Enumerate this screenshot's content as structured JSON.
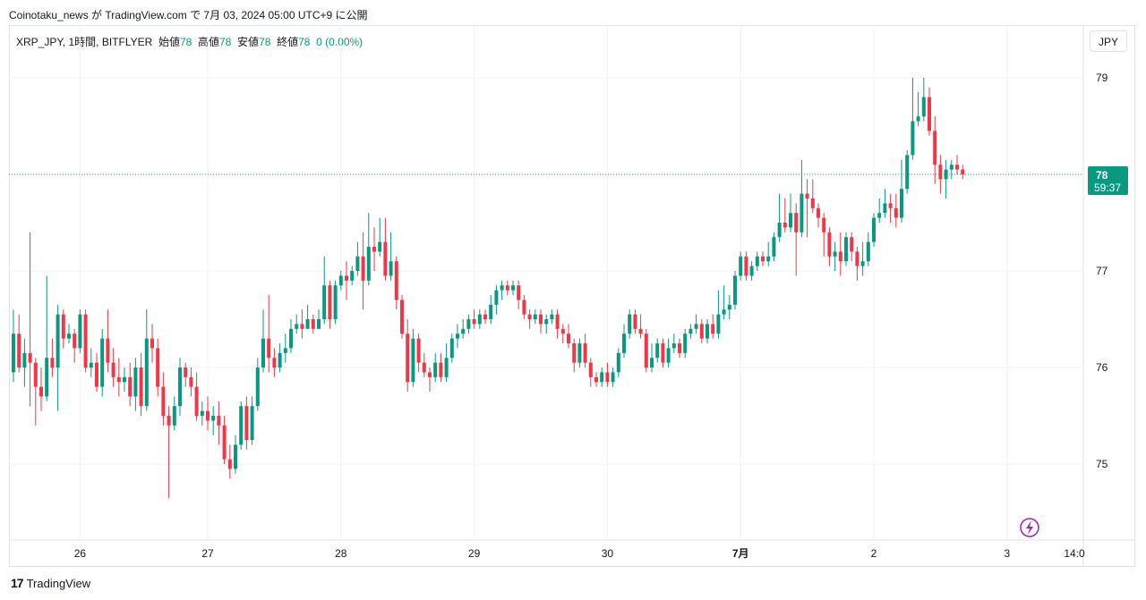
{
  "header": {
    "publish_text": "Coinotaku_news が TradingView.com で 7月 03, 2024 05:00 UTC+9 に公開"
  },
  "legend": {
    "symbol": "XRP_JPY, 1時間, BITFLYER",
    "open_label": "始値",
    "open_value": "78",
    "high_label": "高値",
    "high_value": "78",
    "low_label": "安値",
    "low_value": "78",
    "close_label": "終値",
    "close_value": "78",
    "change": "0 (0.00%)"
  },
  "currency_button": "JPY",
  "price_tag": {
    "price": "78",
    "countdown": "59:37"
  },
  "footer": {
    "brand": "TradingView",
    "logo_text": "17"
  },
  "colors": {
    "up": "#089981",
    "down": "#f23645",
    "grid": "#f0f3fa",
    "tag": "#089981",
    "bolt": "#9c27b0"
  },
  "icons": {
    "bolt": "lightning-icon",
    "logo": "tradingview-logo-icon"
  },
  "chart_data": {
    "type": "candlestick",
    "title": "",
    "xlabel": "",
    "ylabel": "",
    "ylim": [
      74.2,
      79.3
    ],
    "y_ticks": [
      "79",
      "77",
      "76",
      "75"
    ],
    "x_tick_labels": [
      "26",
      "27",
      "28",
      "29",
      "30",
      "7月",
      "2",
      "3",
      "14:0"
    ],
    "grid": true,
    "last_price": 78.0,
    "candles": [
      [
        75.95,
        76.35,
        76.6,
        75.85
      ],
      [
        76.35,
        76.0,
        76.55,
        75.95
      ],
      [
        76.0,
        76.15,
        76.3,
        75.8
      ],
      [
        76.15,
        76.05,
        77.4,
        75.6
      ],
      [
        76.05,
        75.8,
        76.1,
        75.4
      ],
      [
        75.8,
        75.7,
        76.0,
        75.55
      ],
      [
        75.7,
        76.1,
        76.95,
        75.65
      ],
      [
        76.1,
        76.0,
        76.3,
        75.9
      ],
      [
        76.0,
        76.55,
        76.65,
        75.55
      ],
      [
        76.55,
        76.3,
        76.6,
        76.2
      ],
      [
        76.3,
        76.35,
        76.45,
        76.25
      ],
      [
        76.35,
        76.2,
        76.4,
        76.05
      ],
      [
        76.2,
        76.55,
        76.6,
        76.15
      ],
      [
        76.55,
        76.0,
        76.6,
        75.95
      ],
      [
        76.0,
        76.05,
        76.2,
        75.9
      ],
      [
        76.05,
        75.8,
        76.15,
        75.75
      ],
      [
        75.8,
        76.3,
        76.4,
        75.7
      ],
      [
        76.3,
        76.05,
        76.6,
        75.95
      ],
      [
        76.05,
        75.9,
        76.2,
        75.8
      ],
      [
        75.9,
        75.85,
        76.1,
        75.7
      ],
      [
        75.85,
        75.9,
        76.0,
        75.75
      ],
      [
        75.9,
        75.7,
        76.05,
        75.6
      ],
      [
        75.7,
        76.0,
        76.1,
        75.55
      ],
      [
        76.0,
        75.6,
        76.15,
        75.5
      ],
      [
        75.6,
        76.3,
        76.6,
        75.55
      ],
      [
        76.3,
        76.2,
        76.45,
        76.05
      ],
      [
        76.2,
        75.8,
        76.3,
        75.7
      ],
      [
        75.8,
        75.5,
        75.95,
        75.4
      ],
      [
        75.5,
        75.4,
        75.6,
        74.65
      ],
      [
        75.4,
        75.6,
        75.7,
        75.35
      ],
      [
        75.6,
        76.0,
        76.1,
        75.5
      ],
      [
        76.0,
        75.9,
        76.05,
        75.8
      ],
      [
        75.9,
        75.8,
        76.0,
        75.7
      ],
      [
        75.8,
        75.5,
        75.95,
        75.45
      ],
      [
        75.5,
        75.55,
        75.65,
        75.4
      ],
      [
        75.55,
        75.45,
        75.7,
        75.35
      ],
      [
        75.45,
        75.5,
        75.6,
        75.3
      ],
      [
        75.5,
        75.4,
        75.65,
        75.2
      ],
      [
        75.4,
        75.05,
        75.5,
        75.0
      ],
      [
        75.05,
        74.95,
        75.2,
        74.85
      ],
      [
        74.95,
        75.2,
        75.3,
        74.9
      ],
      [
        75.2,
        75.6,
        75.65,
        75.15
      ],
      [
        75.6,
        75.25,
        75.7,
        75.15
      ],
      [
        75.25,
        75.6,
        75.7,
        75.2
      ],
      [
        75.6,
        76.0,
        76.1,
        75.55
      ],
      [
        76.0,
        76.3,
        76.6,
        75.95
      ],
      [
        76.3,
        76.1,
        76.75,
        75.95
      ],
      [
        76.1,
        76.0,
        76.2,
        75.9
      ],
      [
        76.0,
        76.15,
        76.25,
        75.95
      ],
      [
        76.15,
        76.2,
        76.35,
        76.05
      ],
      [
        76.2,
        76.4,
        76.5,
        76.15
      ],
      [
        76.4,
        76.45,
        76.55,
        76.35
      ],
      [
        76.45,
        76.4,
        76.6,
        76.3
      ],
      [
        76.4,
        76.5,
        76.65,
        76.4
      ],
      [
        76.5,
        76.4,
        76.55,
        76.35
      ],
      [
        76.4,
        76.5,
        76.6,
        76.4
      ],
      [
        76.5,
        76.85,
        77.15,
        76.45
      ],
      [
        76.85,
        76.5,
        76.9,
        76.4
      ],
      [
        76.5,
        76.85,
        76.9,
        76.45
      ],
      [
        76.85,
        76.95,
        77.0,
        76.8
      ],
      [
        76.95,
        76.9,
        77.1,
        76.7
      ],
      [
        76.9,
        77.0,
        77.05,
        76.85
      ],
      [
        77.0,
        77.15,
        77.3,
        76.95
      ],
      [
        77.15,
        76.9,
        77.4,
        76.6
      ],
      [
        76.9,
        77.25,
        77.6,
        76.85
      ],
      [
        77.25,
        77.2,
        77.45,
        77.0
      ],
      [
        77.2,
        77.3,
        77.55,
        77.15
      ],
      [
        77.3,
        76.95,
        77.55,
        76.9
      ],
      [
        76.95,
        77.1,
        77.4,
        76.9
      ],
      [
        77.1,
        76.7,
        77.15,
        76.6
      ],
      [
        76.7,
        76.35,
        76.75,
        76.3
      ],
      [
        76.35,
        75.85,
        76.5,
        75.75
      ],
      [
        75.85,
        76.3,
        76.4,
        75.8
      ],
      [
        76.3,
        76.05,
        76.35,
        75.95
      ],
      [
        76.05,
        75.95,
        76.15,
        75.9
      ],
      [
        75.95,
        75.9,
        76.0,
        75.75
      ],
      [
        75.9,
        76.05,
        76.15,
        75.85
      ],
      [
        76.05,
        75.9,
        76.15,
        75.85
      ],
      [
        75.9,
        76.1,
        76.25,
        75.85
      ],
      [
        76.1,
        76.3,
        76.35,
        76.05
      ],
      [
        76.3,
        76.35,
        76.45,
        76.2
      ],
      [
        76.35,
        76.4,
        76.5,
        76.3
      ],
      [
        76.4,
        76.5,
        76.55,
        76.35
      ],
      [
        76.5,
        76.45,
        76.6,
        76.4
      ],
      [
        76.45,
        76.55,
        76.6,
        76.4
      ],
      [
        76.55,
        76.5,
        76.6,
        76.45
      ],
      [
        76.5,
        76.65,
        76.75,
        76.45
      ],
      [
        76.65,
        76.8,
        76.85,
        76.55
      ],
      [
        76.8,
        76.85,
        76.9,
        76.7
      ],
      [
        76.85,
        76.8,
        76.9,
        76.75
      ],
      [
        76.8,
        76.85,
        76.9,
        76.75
      ],
      [
        76.85,
        76.7,
        76.9,
        76.6
      ],
      [
        76.7,
        76.55,
        76.75,
        76.5
      ],
      [
        76.55,
        76.5,
        76.6,
        76.4
      ],
      [
        76.5,
        76.55,
        76.6,
        76.45
      ],
      [
        76.55,
        76.45,
        76.6,
        76.35
      ],
      [
        76.45,
        76.5,
        76.55,
        76.35
      ],
      [
        76.5,
        76.55,
        76.6,
        76.45
      ],
      [
        76.55,
        76.4,
        76.6,
        76.3
      ],
      [
        76.4,
        76.35,
        76.45,
        76.25
      ],
      [
        76.35,
        76.25,
        76.45,
        76.2
      ],
      [
        76.25,
        76.05,
        76.3,
        75.95
      ],
      [
        76.05,
        76.25,
        76.3,
        76.0
      ],
      [
        76.25,
        76.05,
        76.35,
        76.0
      ],
      [
        76.05,
        75.9,
        76.1,
        75.8
      ],
      [
        75.9,
        75.85,
        75.95,
        75.8
      ],
      [
        75.85,
        75.95,
        76.0,
        75.8
      ],
      [
        75.95,
        75.85,
        76.05,
        75.8
      ],
      [
        75.85,
        75.95,
        76.0,
        75.8
      ],
      [
        75.95,
        76.15,
        76.2,
        75.9
      ],
      [
        76.15,
        76.35,
        76.45,
        76.1
      ],
      [
        76.35,
        76.55,
        76.6,
        76.3
      ],
      [
        76.55,
        76.4,
        76.6,
        76.35
      ],
      [
        76.4,
        76.35,
        76.55,
        76.3
      ],
      [
        76.35,
        76.0,
        76.4,
        75.95
      ],
      [
        76.0,
        76.1,
        76.25,
        75.95
      ],
      [
        76.1,
        76.25,
        76.3,
        76.05
      ],
      [
        76.25,
        76.05,
        76.3,
        76.0
      ],
      [
        76.05,
        76.2,
        76.3,
        76.0
      ],
      [
        76.2,
        76.25,
        76.35,
        76.15
      ],
      [
        76.25,
        76.15,
        76.3,
        76.1
      ],
      [
        76.15,
        76.35,
        76.4,
        76.1
      ],
      [
        76.35,
        76.4,
        76.45,
        76.3
      ],
      [
        76.4,
        76.45,
        76.55,
        76.35
      ],
      [
        76.45,
        76.3,
        76.5,
        76.25
      ],
      [
        76.3,
        76.45,
        76.5,
        76.25
      ],
      [
        76.45,
        76.35,
        76.55,
        76.3
      ],
      [
        76.35,
        76.55,
        76.8,
        76.3
      ],
      [
        76.55,
        76.6,
        76.85,
        76.5
      ],
      [
        76.6,
        76.65,
        76.75,
        76.5
      ],
      [
        76.65,
        76.95,
        77.0,
        76.6
      ],
      [
        76.95,
        77.15,
        77.2,
        76.9
      ],
      [
        77.15,
        76.95,
        77.2,
        76.9
      ],
      [
        76.95,
        77.05,
        77.1,
        76.9
      ],
      [
        77.05,
        77.15,
        77.2,
        77.0
      ],
      [
        77.15,
        77.1,
        77.2,
        77.05
      ],
      [
        77.1,
        77.15,
        77.3,
        77.05
      ],
      [
        77.15,
        77.35,
        77.4,
        77.1
      ],
      [
        77.35,
        77.5,
        77.8,
        77.3
      ],
      [
        77.5,
        77.45,
        77.75,
        77.4
      ],
      [
        77.45,
        77.6,
        77.8,
        77.4
      ],
      [
        77.6,
        77.4,
        77.7,
        76.95
      ],
      [
        77.4,
        77.8,
        78.15,
        77.35
      ],
      [
        77.8,
        77.75,
        77.95,
        77.35
      ],
      [
        77.75,
        77.65,
        77.95,
        77.6
      ],
      [
        77.65,
        77.55,
        77.7,
        77.45
      ],
      [
        77.55,
        77.4,
        77.6,
        77.15
      ],
      [
        77.4,
        77.15,
        77.45,
        77.05
      ],
      [
        77.15,
        77.2,
        77.3,
        77.0
      ],
      [
        77.2,
        77.1,
        77.4,
        76.95
      ],
      [
        77.1,
        77.35,
        77.4,
        77.05
      ],
      [
        77.35,
        77.2,
        77.4,
        77.1
      ],
      [
        77.2,
        77.05,
        77.25,
        76.9
      ],
      [
        77.05,
        77.1,
        77.3,
        76.95
      ],
      [
        77.1,
        77.3,
        77.4,
        77.05
      ],
      [
        77.3,
        77.55,
        77.6,
        77.25
      ],
      [
        77.55,
        77.6,
        77.75,
        77.5
      ],
      [
        77.6,
        77.7,
        77.85,
        77.55
      ],
      [
        77.7,
        77.65,
        77.8,
        77.5
      ],
      [
        77.65,
        77.55,
        77.8,
        77.45
      ],
      [
        77.55,
        77.85,
        78.15,
        77.5
      ],
      [
        77.85,
        78.2,
        78.25,
        77.8
      ],
      [
        78.2,
        78.55,
        79.0,
        78.15
      ],
      [
        78.55,
        78.6,
        78.85,
        78.5
      ],
      [
        78.6,
        78.8,
        79.0,
        78.55
      ],
      [
        78.8,
        78.45,
        78.9,
        78.4
      ],
      [
        78.45,
        78.1,
        78.6,
        77.9
      ],
      [
        78.1,
        77.95,
        78.2,
        77.8
      ],
      [
        77.95,
        78.05,
        78.15,
        77.75
      ],
      [
        78.05,
        78.1,
        78.15,
        77.95
      ],
      [
        78.1,
        78.05,
        78.2,
        78.0
      ],
      [
        78.05,
        78.0,
        78.1,
        77.95
      ]
    ]
  }
}
